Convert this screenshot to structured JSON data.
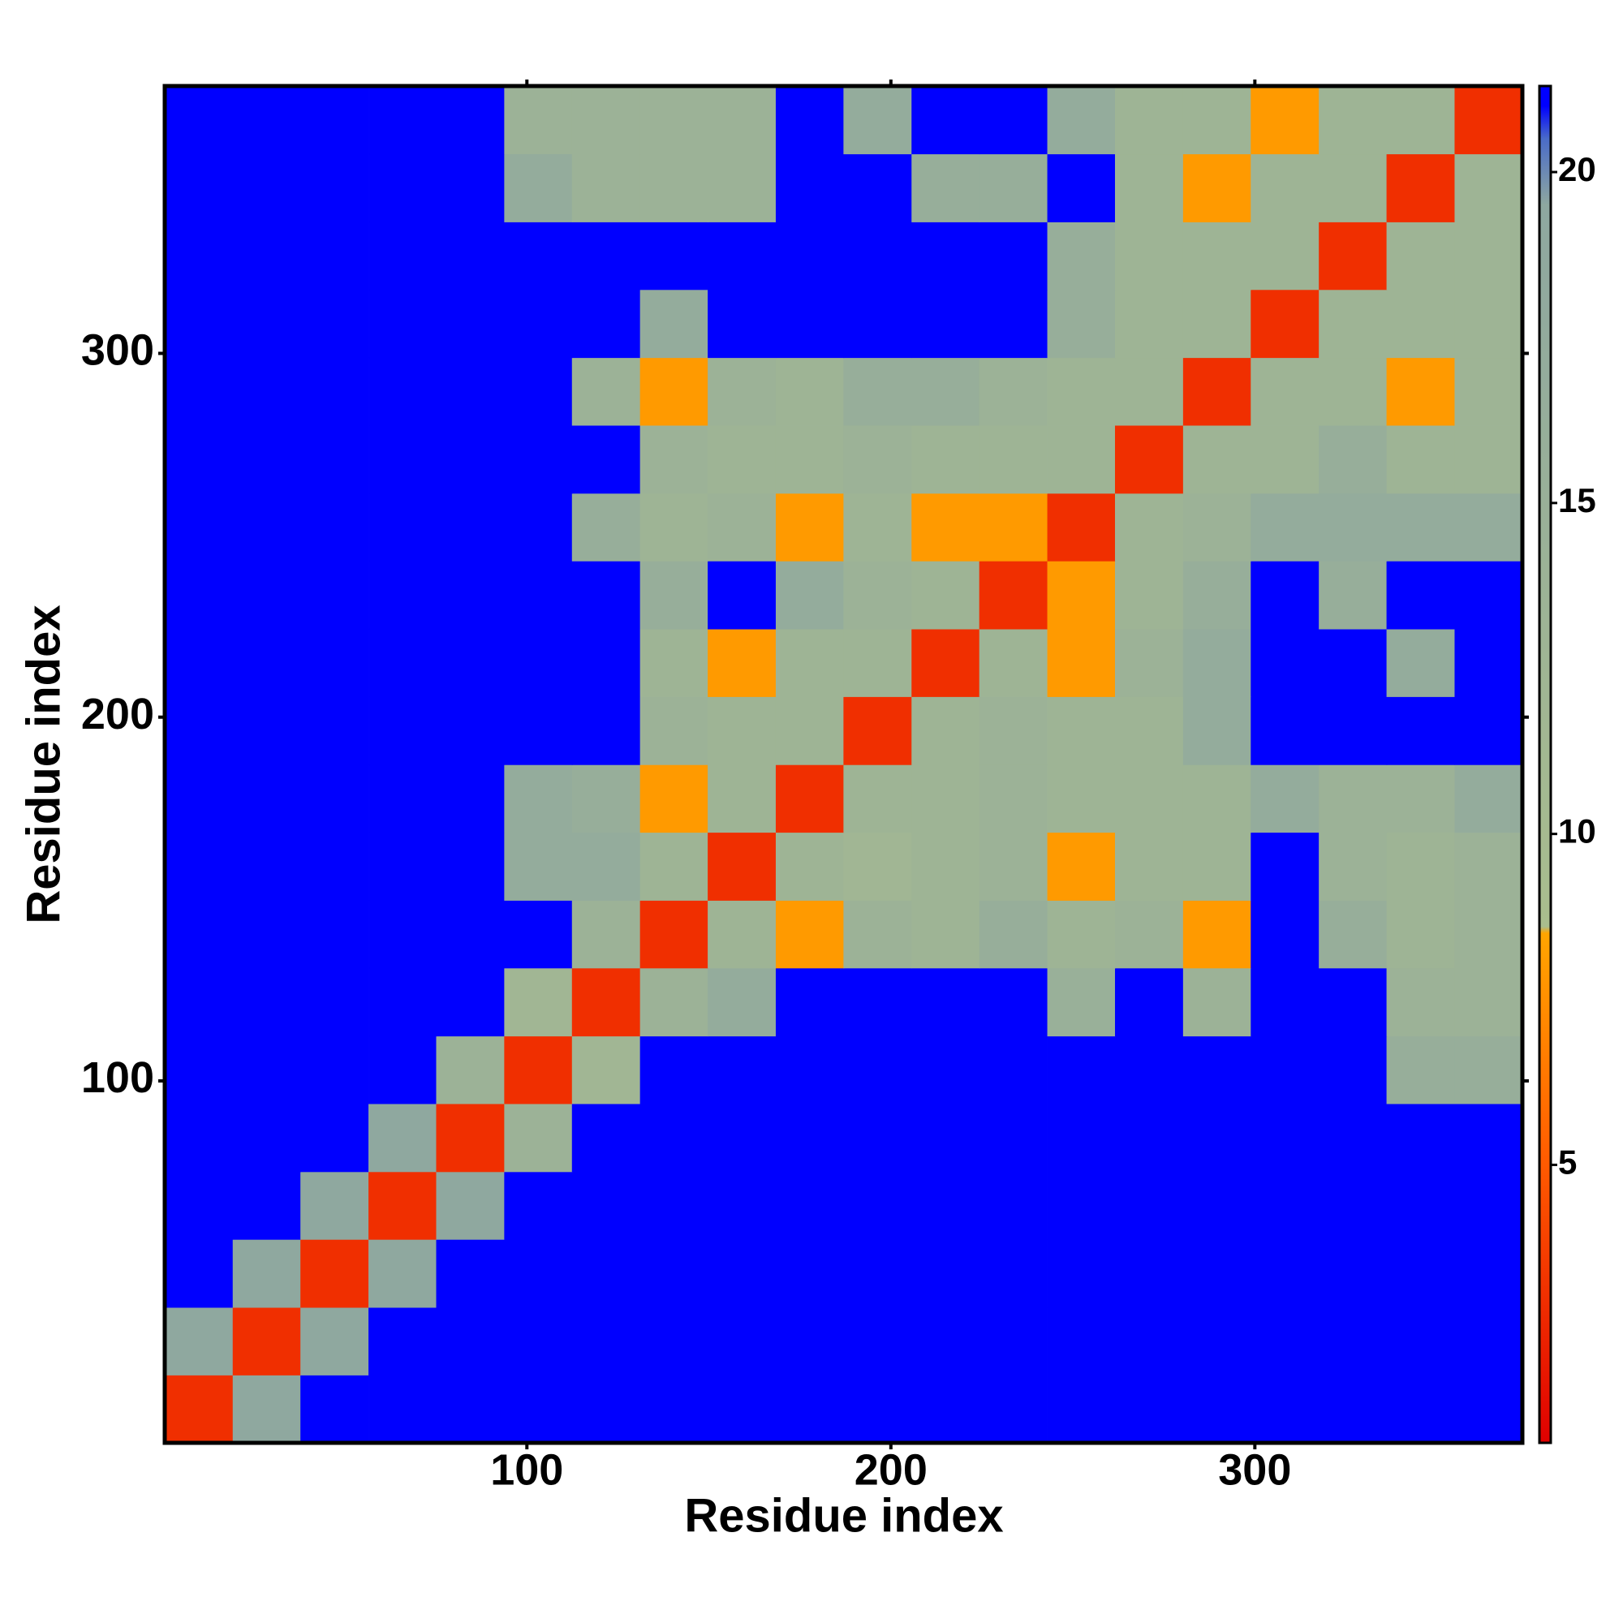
{
  "chart_data": {
    "type": "heatmap",
    "xlabel": "Residue index",
    "ylabel": "Residue index",
    "x": [
      9.8,
      28.5,
      47.1,
      65.8,
      84.4,
      103.1,
      121.7,
      140.4,
      159.0,
      177.7,
      196.3,
      215.0,
      233.6,
      252.3,
      270.9,
      289.6,
      308.2,
      326.9,
      345.5,
      364.2
    ],
    "y": [
      9.8,
      28.5,
      47.1,
      65.8,
      84.4,
      103.1,
      121.7,
      140.4,
      159.0,
      177.7,
      196.3,
      215.0,
      233.6,
      252.3,
      270.9,
      289.6,
      308.2,
      326.9,
      345.5,
      364.2
    ],
    "z": [
      [
        3,
        19,
        21,
        21,
        21,
        21,
        21,
        21,
        21,
        21,
        21,
        21,
        21,
        21,
        21,
        21,
        21,
        21,
        21,
        21
      ],
      [
        19,
        3,
        19,
        21,
        21,
        21,
        21,
        21,
        21,
        21,
        21,
        21,
        21,
        21,
        21,
        21,
        21,
        21,
        21,
        21
      ],
      [
        21,
        19,
        3,
        19,
        21,
        21,
        21,
        21,
        21,
        21,
        21,
        21,
        21,
        21,
        21,
        21,
        21,
        21,
        21,
        21
      ],
      [
        21,
        21,
        19,
        3,
        19,
        21,
        21,
        21,
        21,
        21,
        21,
        21,
        21,
        21,
        21,
        21,
        21,
        21,
        21,
        21
      ],
      [
        21,
        21,
        21,
        19,
        3,
        14,
        21,
        21,
        21,
        21,
        21,
        21,
        21,
        21,
        21,
        21,
        21,
        21,
        21,
        21
      ],
      [
        21,
        21,
        21,
        21,
        14,
        3,
        12,
        21,
        21,
        21,
        21,
        21,
        21,
        21,
        21,
        21,
        21,
        21,
        16,
        16
      ],
      [
        21,
        21,
        21,
        21,
        21,
        12,
        3,
        14,
        17,
        21,
        21,
        21,
        21,
        15,
        21,
        14,
        21,
        21,
        14,
        14
      ],
      [
        21,
        21,
        21,
        21,
        21,
        21,
        14,
        3,
        13,
        8,
        14,
        13,
        16,
        13,
        14,
        8,
        21,
        16,
        13,
        14
      ],
      [
        21,
        21,
        21,
        21,
        21,
        17,
        17,
        13,
        3,
        13,
        12,
        13,
        14,
        8,
        13,
        13,
        21,
        14,
        13,
        14
      ],
      [
        21,
        21,
        21,
        21,
        21,
        17,
        16,
        8,
        13,
        3,
        13,
        13,
        14,
        13,
        13,
        13,
        17,
        14,
        14,
        17
      ],
      [
        21,
        21,
        21,
        21,
        21,
        21,
        21,
        14,
        13,
        13,
        3,
        13,
        14,
        13,
        13,
        17,
        21,
        21,
        21,
        21
      ],
      [
        21,
        21,
        21,
        21,
        21,
        21,
        21,
        13,
        8,
        13,
        13,
        3,
        13,
        8,
        14,
        17,
        21,
        21,
        17,
        21
      ],
      [
        21,
        21,
        21,
        21,
        21,
        21,
        21,
        16,
        21,
        17,
        14,
        13,
        3,
        8,
        13,
        16,
        21,
        16,
        21,
        21
      ],
      [
        21,
        21,
        21,
        21,
        21,
        21,
        16,
        13,
        14,
        8,
        13,
        8,
        8,
        3,
        13,
        14,
        17,
        17,
        17,
        17
      ],
      [
        21,
        21,
        21,
        21,
        21,
        21,
        21,
        14,
        13,
        13,
        14,
        13,
        13,
        13,
        3,
        13,
        13,
        16,
        13,
        13
      ],
      [
        21,
        21,
        21,
        21,
        21,
        21,
        14,
        8,
        14,
        13,
        16,
        16,
        14,
        13,
        13,
        3,
        13,
        13,
        8,
        13
      ],
      [
        21,
        21,
        21,
        21,
        21,
        21,
        21,
        17,
        21,
        21,
        21,
        21,
        21,
        16,
        13,
        13,
        3,
        13,
        13,
        13
      ],
      [
        21,
        21,
        21,
        21,
        21,
        21,
        21,
        21,
        21,
        21,
        21,
        21,
        21,
        16,
        13,
        13,
        13,
        3,
        13,
        13
      ],
      [
        21,
        21,
        21,
        21,
        21,
        17,
        14,
        14,
        14,
        21,
        21,
        16,
        16,
        21,
        13,
        8,
        13,
        13,
        3,
        13
      ],
      [
        21,
        21,
        21,
        21,
        21,
        14,
        14,
        14,
        14,
        21,
        17,
        21,
        21,
        17,
        13,
        13,
        8,
        13,
        13,
        3
      ]
    ],
    "xlim": [
      0.5,
      373.5
    ],
    "ylim": [
      0.5,
      373.5
    ],
    "xticks": [
      100,
      200,
      300
    ],
    "yticks": [
      100,
      200,
      300
    ],
    "zlim": [
      0.8,
      21.3
    ],
    "zticks": [
      5,
      10,
      15,
      20
    ],
    "colorscale": [
      [
        0.8,
        "#e00000"
      ],
      [
        5,
        "#ff5a00"
      ],
      [
        8.5,
        "#ffa500"
      ],
      [
        8.6,
        "#a9bd8e"
      ],
      [
        19.5,
        "#8ea7a0"
      ],
      [
        20.5,
        "#4a6cc8"
      ],
      [
        21,
        "#0000ff"
      ],
      [
        21.3,
        "#0000ff"
      ]
    ]
  }
}
